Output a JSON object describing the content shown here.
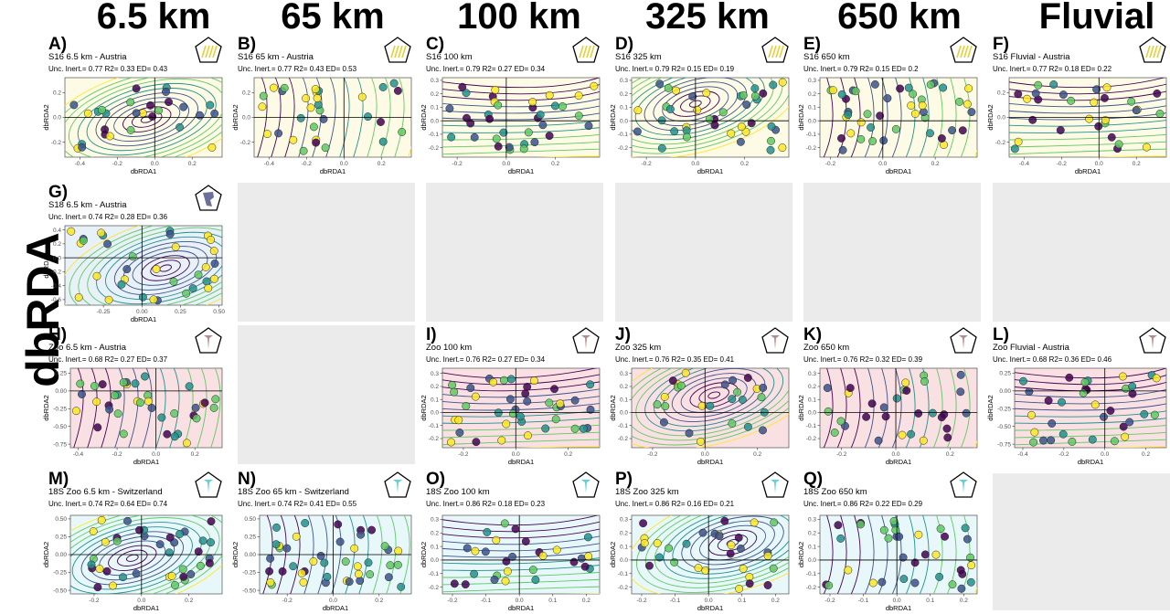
{
  "column_headers": [
    "6.5 km",
    "65 km",
    "100 km",
    "325 km",
    "650 km",
    "Fluvial"
  ],
  "row_title": "dbRDA",
  "colors": {
    "s16_bg": "#fdfbe6",
    "s18_bg": "#e8f0f8",
    "zoo_bg": "#f9e0e3",
    "zoo18s_bg": "#e8f8fa",
    "empty_bg": "#ebebeb",
    "viridis": [
      "#440154",
      "#3b528b",
      "#21918c",
      "#5ec962",
      "#fde725"
    ]
  },
  "empty_cells": [
    [
      1,
      1
    ],
    [
      1,
      2
    ],
    [
      1,
      3
    ],
    [
      1,
      4
    ],
    [
      1,
      5
    ],
    [
      2,
      1
    ],
    [
      3,
      5
    ]
  ],
  "chart_data": [
    {
      "id": "A",
      "row": 0,
      "col": 0,
      "type": "scatter",
      "letter": "A)",
      "title": "S16 6.5 km - Austria",
      "stats": "Unc. Inert.= 0.77 R2= 0.33 ED= 0.43",
      "xlabel": "dbRDA1",
      "ylabel": "dbRDA2",
      "xticks": [
        -0.4,
        -0.2,
        0.0,
        0.2
      ],
      "yticks": [
        -0.2,
        0.0,
        0.2
      ],
      "xlim": [
        -0.48,
        0.36
      ],
      "ylim": [
        -0.32,
        0.32
      ],
      "icon": "reeds",
      "bg": "s16_bg"
    },
    {
      "id": "B",
      "row": 0,
      "col": 1,
      "type": "scatter",
      "letter": "B)",
      "title": "S16 65 km - Austria",
      "stats": "Unc. Inert.= 0.77 R2= 0.43 ED= 0.53",
      "xlabel": "dbRDA1",
      "ylabel": "dbRDA2",
      "xticks": [
        -0.4,
        -0.2,
        0.0,
        0.2
      ],
      "yticks": [
        -0.2,
        0.0,
        0.2
      ],
      "xlim": [
        -0.48,
        0.36
      ],
      "ylim": [
        -0.32,
        0.32
      ],
      "icon": "reeds",
      "bg": "s16_bg"
    },
    {
      "id": "C",
      "row": 0,
      "col": 2,
      "type": "scatter",
      "letter": "C)",
      "title": "S16 100 km",
      "stats": "Unc. Inert.= 0.79 R2= 0.27 ED= 0.34",
      "xlabel": "dbRDA1",
      "ylabel": "dbRDA2",
      "xticks": [
        -0.2,
        0.0,
        0.2
      ],
      "yticks": [
        -0.2,
        -0.1,
        0.0,
        0.1,
        0.2,
        0.3
      ],
      "xlim": [
        -0.26,
        0.38
      ],
      "ylim": [
        -0.27,
        0.32
      ],
      "icon": "reeds",
      "bg": "s16_bg"
    },
    {
      "id": "D",
      "row": 0,
      "col": 3,
      "type": "scatter",
      "letter": "D)",
      "title": "S16 325 km",
      "stats": "Unc. Inert.= 0.79 R2= 0.15 ED= 0.19",
      "xlabel": "dbRDA1",
      "ylabel": "dbRDA2",
      "xticks": [
        -0.2,
        0.0,
        0.2
      ],
      "yticks": [
        -0.2,
        -0.1,
        0.0,
        0.1,
        0.2,
        0.3
      ],
      "xlim": [
        -0.26,
        0.38
      ],
      "ylim": [
        -0.27,
        0.32
      ],
      "icon": "reeds",
      "bg": "s16_bg"
    },
    {
      "id": "E",
      "row": 0,
      "col": 4,
      "type": "scatter",
      "letter": "E)",
      "title": "S16 650 km",
      "stats": "Unc. Inert.= 0.79 R2= 0.15 ED= 0.2",
      "xlabel": "dbRDA1",
      "ylabel": "dbRDA2",
      "xticks": [
        -0.2,
        0.0,
        0.2
      ],
      "yticks": [
        -0.2,
        -0.1,
        0.0,
        0.1,
        0.2,
        0.3
      ],
      "xlim": [
        -0.24,
        0.36
      ],
      "ylim": [
        -0.27,
        0.32
      ],
      "icon": "reeds",
      "bg": "s16_bg"
    },
    {
      "id": "F",
      "row": 0,
      "col": 5,
      "type": "scatter",
      "letter": "F)",
      "title": "S16 Fluvial - Austria",
      "stats": "Unc. Inert.= 0.77 R2= 0.18 ED= 0.22",
      "xlabel": "dbRDA1",
      "ylabel": "dbRDA2",
      "xticks": [
        -0.4,
        -0.2,
        0.0,
        0.2
      ],
      "yticks": [
        -0.2,
        0.0,
        0.2
      ],
      "xlim": [
        -0.48,
        0.36
      ],
      "ylim": [
        -0.32,
        0.32
      ],
      "icon": "reeds",
      "bg": "s16_bg"
    },
    {
      "id": "G",
      "row": 1,
      "col": 0,
      "type": "scatter",
      "letter": "G)",
      "title": "S18 6.5 km - Austria",
      "stats": "Unc. Inert.= 0.74 R2= 0.28 ED= 0.36",
      "xlabel": "dbRDA1",
      "ylabel": "dbRDA2",
      "xticks": [
        -0.25,
        0.0,
        0.25,
        0.5
      ],
      "yticks": [
        -0.6,
        -0.4,
        -0.2,
        0.0,
        0.2,
        0.4
      ],
      "xticklabels": [
        "-0.25",
        "0.00",
        "0.25",
        "0.50"
      ],
      "xlim": [
        -0.5,
        0.52
      ],
      "ylim": [
        -0.68,
        0.46
      ],
      "icon": "fish",
      "bg": "s18_bg"
    },
    {
      "id": "H",
      "row": 2,
      "col": 0,
      "type": "scatter",
      "letter": "H)",
      "title": "Zoo 6.5 km - Austria",
      "stats": "Unc. Inert.= 0.68 R2= 0.27 ED= 0.37",
      "xlabel": "dbRDA1",
      "ylabel": "dbRDA2",
      "xticks": [
        -0.4,
        -0.2,
        0.0,
        0.2
      ],
      "yticks": [
        -0.75,
        -0.5,
        -0.25,
        0.0,
        0.25
      ],
      "xticklabels": [
        "-0.4",
        "-0.2",
        "0.0",
        "0.2"
      ],
      "yticklabels": [
        "-0.75",
        "-0.50",
        "-0.25",
        "0.00",
        "0.25"
      ],
      "xlim": [
        -0.44,
        0.34
      ],
      "ylim": [
        -0.8,
        0.32
      ],
      "icon": "zoo",
      "bg": "zoo_bg"
    },
    {
      "id": "I",
      "row": 2,
      "col": 2,
      "type": "scatter",
      "letter": "I)",
      "title": "Zoo 100 km",
      "stats": "Unc. Inert.= 0.76 R2= 0.27 ED= 0.34",
      "xlabel": "dbRDA1",
      "ylabel": "dbRDA2",
      "xticks": [
        -0.2,
        0.0,
        0.2
      ],
      "yticks": [
        -0.2,
        -0.1,
        0.0,
        0.1,
        0.2,
        0.3
      ],
      "xlim": [
        -0.28,
        0.32
      ],
      "ylim": [
        -0.27,
        0.34
      ],
      "icon": "zoo",
      "bg": "zoo_bg"
    },
    {
      "id": "J",
      "row": 2,
      "col": 3,
      "type": "scatter",
      "letter": "J)",
      "title": "Zoo 325 km",
      "stats": "Unc. Inert.= 0.76 R2= 0.35 ED= 0.41",
      "xlabel": "dbRDA1",
      "ylabel": "dbRDA2",
      "xticks": [
        -0.2,
        0.0,
        0.2
      ],
      "yticks": [
        -0.2,
        -0.1,
        0.0,
        0.1,
        0.2,
        0.3
      ],
      "xlim": [
        -0.28,
        0.32
      ],
      "ylim": [
        -0.27,
        0.34
      ],
      "icon": "zoo",
      "bg": "zoo_bg"
    },
    {
      "id": "K",
      "row": 2,
      "col": 4,
      "type": "scatter",
      "letter": "K)",
      "title": "Zoo 650 km",
      "stats": "Unc. Inert.= 0.76 R2= 0.32 ED= 0.39",
      "xlabel": "dbRDA1",
      "ylabel": "dbRDA2",
      "xticks": [
        -0.2,
        0.0,
        0.2
      ],
      "yticks": [
        -0.2,
        -0.1,
        0.0,
        0.1,
        0.2,
        0.3
      ],
      "xlim": [
        -0.28,
        0.3
      ],
      "ylim": [
        -0.27,
        0.34
      ],
      "icon": "zoo",
      "bg": "zoo_bg"
    },
    {
      "id": "L",
      "row": 2,
      "col": 5,
      "type": "scatter",
      "letter": "L)",
      "title": "Zoo Fluvial - Austria",
      "stats": "Unc. Inert.= 0.68 R2= 0.36 ED= 0.46",
      "xlabel": "dbRDA1",
      "ylabel": "dbRDA2",
      "xticks": [
        -0.4,
        -0.2,
        0.0,
        0.2
      ],
      "yticks": [
        -0.75,
        -0.5,
        -0.25,
        0.0,
        0.25
      ],
      "yticklabels": [
        "-0.75",
        "-0.50",
        "-0.25",
        "0.00",
        "0.25"
      ],
      "xlim": [
        -0.44,
        0.3
      ],
      "ylim": [
        -0.8,
        0.32
      ],
      "icon": "zoo",
      "bg": "zoo_bg"
    },
    {
      "id": "M",
      "row": 3,
      "col": 0,
      "type": "scatter",
      "letter": "M)",
      "title": "18S Zoo 6.5 km - Switzerland",
      "stats": "Unc. Inert.= 0.74 R2= 0.64 ED= 0.74",
      "xlabel": "dbRDA1",
      "ylabel": "dbRDA2",
      "xticks": [
        -0.2,
        0.0,
        0.2
      ],
      "yticks": [
        -0.5,
        -0.25,
        0.0,
        0.25,
        0.5
      ],
      "yticklabels": [
        "-0.50",
        "-0.25",
        "0.00",
        "0.25",
        "0.50"
      ],
      "xlim": [
        -0.3,
        0.34
      ],
      "ylim": [
        -0.55,
        0.55
      ],
      "icon": "zoo18",
      "bg": "zoo18s_bg"
    },
    {
      "id": "N",
      "row": 3,
      "col": 1,
      "type": "scatter",
      "letter": "N)",
      "title": "18S Zoo 65 km - Switzerland",
      "stats": "Unc. Inert.= 0.74 R2= 0.41 ED= 0.55",
      "xlabel": "dbRDA1",
      "ylabel": "dbRDA2",
      "xticks": [
        -0.2,
        0.0,
        0.2
      ],
      "yticks": [
        -0.5,
        -0.25,
        0.0,
        0.25,
        0.5
      ],
      "yticklabels": [
        "-0.50",
        "-0.25",
        "0.00",
        "0.25",
        "0.50"
      ],
      "xlim": [
        -0.32,
        0.34
      ],
      "ylim": [
        -0.55,
        0.55
      ],
      "icon": "zoo18",
      "bg": "zoo18s_bg"
    },
    {
      "id": "O",
      "row": 3,
      "col": 2,
      "type": "scatter",
      "letter": "O)",
      "title": "18S Zoo 100 km",
      "stats": "Unc. Inert.= 0.86 R2= 0.18 ED= 0.23",
      "xlabel": "dbRDA1",
      "ylabel": "dbRDA2",
      "xticks": [
        -0.2,
        -0.1,
        0.0,
        0.1,
        0.2
      ],
      "yticks": [
        -0.2,
        -0.1,
        0.0,
        0.1,
        0.2,
        0.3
      ],
      "xlim": [
        -0.23,
        0.24
      ],
      "ylim": [
        -0.25,
        0.33
      ],
      "icon": "zoo18",
      "bg": "zoo18s_bg"
    },
    {
      "id": "P",
      "row": 3,
      "col": 3,
      "type": "scatter",
      "letter": "P)",
      "title": "18S Zoo 325 km",
      "stats": "Unc. Inert.= 0.86 R2= 0.16 ED= 0.21",
      "xlabel": "dbRDA1",
      "ylabel": "dbRDA2",
      "xticks": [
        -0.2,
        -0.1,
        0.0,
        0.1,
        0.2
      ],
      "yticks": [
        -0.2,
        -0.1,
        0.0,
        0.1,
        0.2,
        0.3
      ],
      "xlim": [
        -0.23,
        0.24
      ],
      "ylim": [
        -0.25,
        0.33
      ],
      "icon": "zoo18",
      "bg": "zoo18s_bg"
    },
    {
      "id": "Q",
      "row": 3,
      "col": 4,
      "type": "scatter",
      "letter": "Q)",
      "title": "18S Zoo 650 km",
      "stats": "Unc. Inert.= 0.86 R2= 0.22 ED= 0.29",
      "xlabel": "dbRDA1",
      "ylabel": "dbRDA2",
      "xticks": [
        -0.2,
        -0.1,
        0.0,
        0.1,
        0.2
      ],
      "yticks": [
        -0.2,
        -0.1,
        0.0,
        0.1,
        0.2,
        0.3
      ],
      "xlim": [
        -0.23,
        0.24
      ],
      "ylim": [
        -0.25,
        0.33
      ],
      "icon": "zoo18",
      "bg": "zoo18s_bg"
    }
  ]
}
